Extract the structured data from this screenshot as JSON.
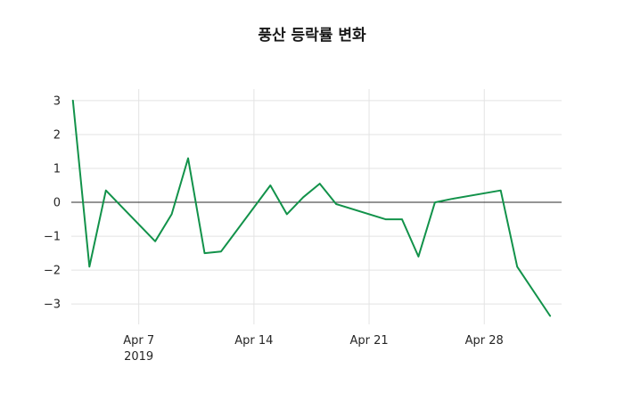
{
  "chart_data": {
    "type": "line",
    "title": "풍산 등락률 변화",
    "series_name": "등락률",
    "x_dates": [
      "Apr 3",
      "Apr 4",
      "Apr 5",
      "Apr 8",
      "Apr 9",
      "Apr 10",
      "Apr 11",
      "Apr 12",
      "Apr 15",
      "Apr 16",
      "Apr 17",
      "Apr 18",
      "Apr 19",
      "Apr 22",
      "Apr 23",
      "Apr 24",
      "Apr 25",
      "Apr 26",
      "Apr 29",
      "Apr 30",
      "May 2"
    ],
    "x_days": [
      3,
      4,
      5,
      8,
      9,
      10,
      11,
      12,
      15,
      16,
      17,
      18,
      19,
      22,
      23,
      24,
      25,
      26,
      29,
      30,
      32
    ],
    "values": [
      3.0,
      -1.9,
      0.35,
      -1.15,
      -0.35,
      1.3,
      -1.5,
      -1.45,
      0.5,
      -0.35,
      0.15,
      0.55,
      -0.05,
      -0.5,
      -0.5,
      -1.6,
      0.0,
      0.1,
      0.35,
      -1.9,
      -3.35
    ],
    "xticks": [
      {
        "day": 7,
        "label": "Apr 7",
        "sublabel": "2019"
      },
      {
        "day": 14,
        "label": "Apr 14",
        "sublabel": ""
      },
      {
        "day": 21,
        "label": "Apr 21",
        "sublabel": ""
      },
      {
        "day": 28,
        "label": "Apr 28",
        "sublabel": ""
      }
    ],
    "yticks": [
      {
        "value": 3,
        "label": "3"
      },
      {
        "value": 2,
        "label": "2"
      },
      {
        "value": 1,
        "label": "1"
      },
      {
        "value": 0,
        "label": "0"
      },
      {
        "value": -1,
        "label": "−1"
      },
      {
        "value": -2,
        "label": "−2"
      },
      {
        "value": -3,
        "label": "−3"
      }
    ],
    "xlim_days": [
      2.9,
      32.7
    ],
    "ylim": [
      -3.6,
      3.34
    ],
    "grid": true,
    "legend": "none",
    "line_color": "#12924a",
    "grid_color": "#e3e3e3",
    "zero_line_color": "#2b2b2b",
    "text_color": "#262626"
  }
}
